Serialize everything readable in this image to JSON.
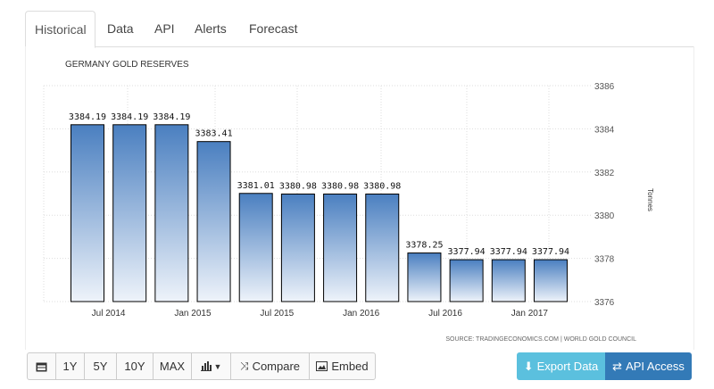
{
  "tabs": [
    "Historical",
    "Data",
    "API",
    "Alerts",
    "Forecast"
  ],
  "toolbar": {
    "calendar_icon": "calendar-icon",
    "ranges": [
      "1Y",
      "5Y",
      "10Y",
      "MAX"
    ],
    "chart_type_icon": "bar-chart-icon",
    "compare_label": "Compare",
    "embed_label": "Embed",
    "export_label": "Export Data",
    "api_label": "API Access",
    "export_color": "#5bc0de",
    "api_color": "#337ab7"
  },
  "chart_data": {
    "type": "bar",
    "title": "GERMANY GOLD RESERVES",
    "ylabel": "Tonnes",
    "source": "SOURCE: TRADINGECONOMICS.COM | WORLD GOLD COUNCIL",
    "categories": [
      "2014-06",
      "2014-09",
      "2014-12",
      "2015-03",
      "2015-06",
      "2015-09",
      "2015-12",
      "2016-03",
      "2016-06",
      "2016-09",
      "2016-12",
      "2017-03"
    ],
    "values": [
      3384.19,
      3384.19,
      3384.19,
      3383.41,
      3381.01,
      3380.98,
      3380.98,
      3380.98,
      3378.25,
      3377.94,
      3377.94,
      3377.94
    ],
    "value_labels": [
      "3384.19",
      "3384.19",
      "3384.19",
      "3383.41",
      "3381.01",
      "3380.98",
      "3380.98",
      "3380.98",
      "3378.25",
      "3377.94",
      "3377.94",
      "3377.94"
    ],
    "x_tick_labels": [
      "Jul 2014",
      "Jan 2015",
      "Jul 2015",
      "Jan 2016",
      "Jul 2016",
      "Jan 2017"
    ],
    "x_tick_after_bar": [
      0,
      2,
      4,
      6,
      8,
      10
    ],
    "yticks": [
      3376,
      3378,
      3380,
      3382,
      3384,
      3386
    ],
    "ylim": [
      3376,
      3386
    ],
    "grid": true,
    "bar_color_top": "#4a7fc0",
    "bar_color_bottom": "#eef3fa"
  }
}
